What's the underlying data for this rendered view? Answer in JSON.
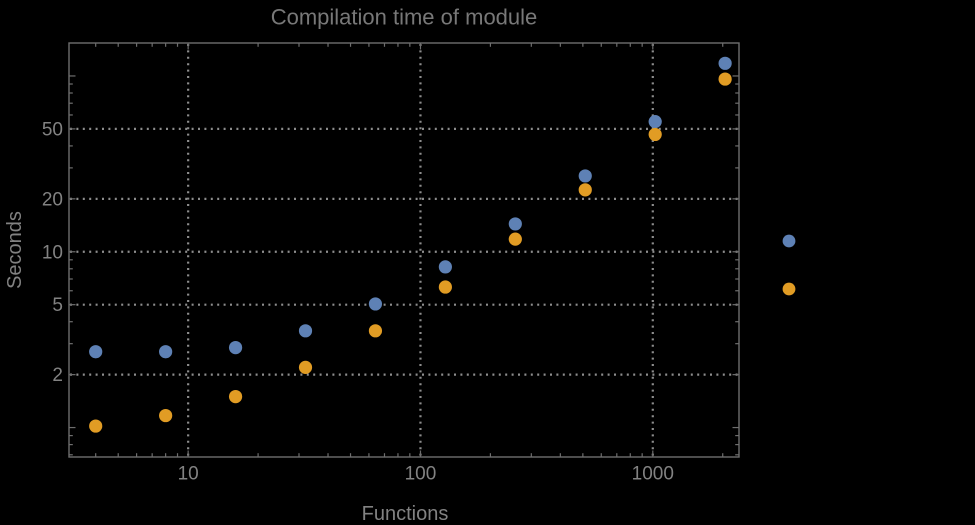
{
  "chart_data": {
    "type": "scatter",
    "title": "Compilation time of module",
    "xlabel": "Functions",
    "ylabel": "Seconds",
    "x_scale": "log",
    "y_scale": "log",
    "x_range": [
      3.07,
      2350
    ],
    "y_range": [
      0.68,
      154
    ],
    "grid": "dotted",
    "x": [
      4,
      8,
      16,
      32,
      64,
      128,
      256,
      512,
      1024,
      2048
    ],
    "series": [
      {
        "name": "series-blue",
        "color": "#5E81B5",
        "values": [
          2.7,
          2.7,
          2.85,
          3.55,
          5.05,
          8.2,
          14.4,
          27,
          55,
          118
        ]
      },
      {
        "name": "series-orange",
        "color": "#E19C24",
        "values": [
          1.02,
          1.17,
          1.5,
          2.2,
          3.55,
          6.3,
          11.8,
          22.5,
          46.5,
          96
        ]
      }
    ],
    "x_ticks": [
      {
        "v": 10,
        "label": "10"
      },
      {
        "v": 100,
        "label": "100"
      },
      {
        "v": 1000,
        "label": "1000"
      }
    ],
    "y_ticks": [
      {
        "v": 2,
        "label": "2"
      },
      {
        "v": 5,
        "label": "5"
      },
      {
        "v": 10,
        "label": "10"
      },
      {
        "v": 20,
        "label": "20"
      },
      {
        "v": 50,
        "label": "50"
      }
    ],
    "legend": {
      "position": "right-outside",
      "entries": [
        {
          "marker_color": "#5E81B5"
        },
        {
          "marker_color": "#E19C24"
        }
      ]
    }
  },
  "colors": {
    "background": "#000000",
    "frame": "#6e6e6e",
    "grid": "#8d8d8d",
    "tick_text": "#828282",
    "title_text": "#787878",
    "series_blue": "#5E81B5",
    "series_orange": "#E19C24"
  }
}
